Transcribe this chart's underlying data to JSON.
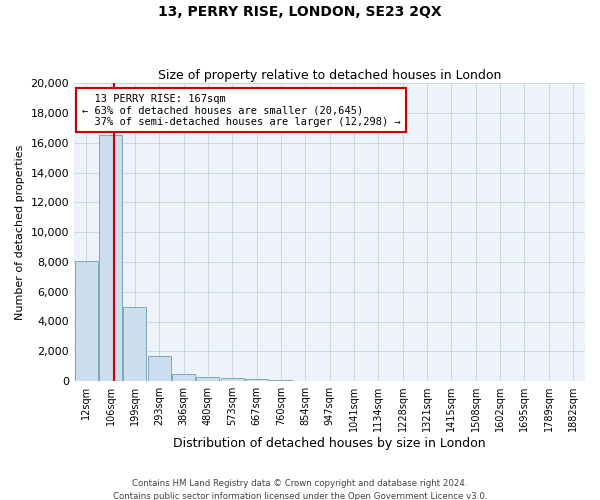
{
  "title1": "13, PERRY RISE, LONDON, SE23 2QX",
  "title2": "Size of property relative to detached houses in London",
  "xlabel": "Distribution of detached houses by size in London",
  "ylabel": "Number of detached properties",
  "property_size_sqm": 167,
  "property_label": "13 PERRY RISE: 167sqm",
  "pct_smaller": 63,
  "n_smaller": 20645,
  "pct_larger": 37,
  "n_larger": 12298,
  "footnote1": "Contains HM Land Registry data © Crown copyright and database right 2024.",
  "footnote2": "Contains public sector information licensed under the Open Government Licence v3.0.",
  "bar_color": "#ccdded",
  "bar_edge_color": "#7aaabb",
  "vline_color": "#cc0000",
  "grid_color": "#c8d8e8",
  "background_color": "#edf3f8",
  "bin_edges": [
    12,
    106,
    199,
    293,
    386,
    480,
    573,
    667,
    760,
    854,
    947,
    1041,
    1134,
    1228,
    1321,
    1415,
    1508,
    1602,
    1695,
    1789,
    1882
  ],
  "bin_labels": [
    "12sqm",
    "106sqm",
    "199sqm",
    "293sqm",
    "386sqm",
    "480sqm",
    "573sqm",
    "667sqm",
    "760sqm",
    "854sqm",
    "947sqm",
    "1041sqm",
    "1134sqm",
    "1228sqm",
    "1321sqm",
    "1415sqm",
    "1508sqm",
    "1602sqm",
    "1695sqm",
    "1789sqm",
    "1882sqm"
  ],
  "bar_heights": [
    8050,
    16500,
    5000,
    1700,
    500,
    300,
    200,
    150,
    100,
    0,
    0,
    0,
    0,
    0,
    0,
    0,
    0,
    0,
    0,
    0,
    0
  ],
  "ylim": [
    0,
    20000
  ],
  "yticks": [
    0,
    2000,
    4000,
    6000,
    8000,
    10000,
    12000,
    14000,
    16000,
    18000,
    20000
  ]
}
